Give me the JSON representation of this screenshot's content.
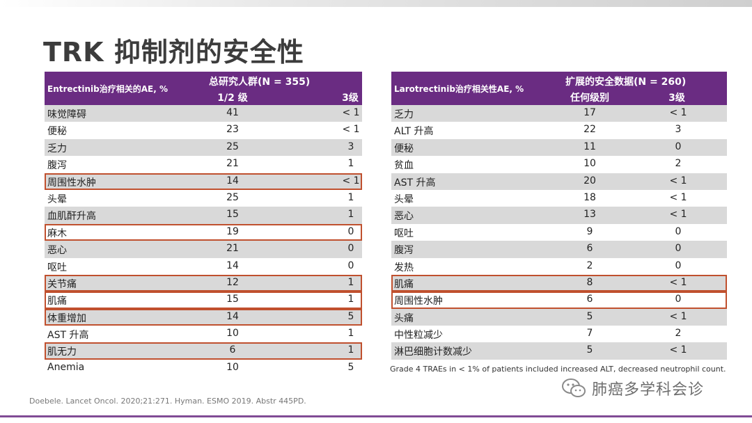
{
  "title": "TRK 抑制剂的安全性",
  "left_table": {
    "corner": "Entrectinib治疗相关的AE, %",
    "group_header": "总研究人群(N = 355)",
    "col1": "1/2 级",
    "col2": "3级",
    "rows": [
      {
        "name": "味觉障碍",
        "a": "41",
        "b": "< 1",
        "hl": false
      },
      {
        "name": "便秘",
        "a": "23",
        "b": "< 1",
        "hl": false
      },
      {
        "name": "乏力",
        "a": "25",
        "b": "3",
        "hl": false
      },
      {
        "name": "腹泻",
        "a": "21",
        "b": "1",
        "hl": false
      },
      {
        "name": "周围性水肿",
        "a": "14",
        "b": "< 1",
        "hl": true
      },
      {
        "name": "头晕",
        "a": "25",
        "b": "1",
        "hl": false
      },
      {
        "name": "血肌酐升高",
        "a": "15",
        "b": "1",
        "hl": false
      },
      {
        "name": "麻木",
        "a": "19",
        "b": "0",
        "hl": true
      },
      {
        "name": "恶心",
        "a": "21",
        "b": "0",
        "hl": false
      },
      {
        "name": "呕吐",
        "a": "14",
        "b": "0",
        "hl": false
      },
      {
        "name": "关节痛",
        "a": "12",
        "b": "1",
        "hl": true
      },
      {
        "name": "肌痛",
        "a": "15",
        "b": "1",
        "hl": true
      },
      {
        "name": "体重增加",
        "a": "14",
        "b": "5",
        "hl": true
      },
      {
        "name": "AST 升高",
        "a": "10",
        "b": "1",
        "hl": false
      },
      {
        "name": "肌无力",
        "a": "6",
        "b": "1",
        "hl": true
      },
      {
        "name": "Anemia",
        "a": "10",
        "b": "5",
        "hl": false
      }
    ]
  },
  "right_table": {
    "corner": "Larotrectinib治疗相关性AE, %",
    "group_header": "扩展的安全数据(N = 260)",
    "col1": "任何级别",
    "col2": "3级",
    "rows": [
      {
        "name": "乏力",
        "a": "17",
        "b": "< 1",
        "hl": false
      },
      {
        "name": "ALT 升高",
        "a": "22",
        "b": "3",
        "hl": false
      },
      {
        "name": "便秘",
        "a": "11",
        "b": "0",
        "hl": false
      },
      {
        "name": "贫血",
        "a": "10",
        "b": "2",
        "hl": false
      },
      {
        "name": "AST 升高",
        "a": "20",
        "b": "< 1",
        "hl": false
      },
      {
        "name": "头晕",
        "a": "18",
        "b": "< 1",
        "hl": false
      },
      {
        "name": "恶心",
        "a": "13",
        "b": "< 1",
        "hl": false
      },
      {
        "name": "呕吐",
        "a": "9",
        "b": "0",
        "hl": false
      },
      {
        "name": "腹泻",
        "a": "6",
        "b": "0",
        "hl": false
      },
      {
        "name": "发热",
        "a": "2",
        "b": "0",
        "hl": false
      },
      {
        "name": "肌痛",
        "a": "8",
        "b": "< 1",
        "hl": true
      },
      {
        "name": "周围性水肿",
        "a": "6",
        "b": "0",
        "hl": true
      },
      {
        "name": "头痛",
        "a": "5",
        "b": "< 1",
        "hl": false
      },
      {
        "name": "中性粒减少",
        "a": "7",
        "b": "2",
        "hl": false
      },
      {
        "name": "淋巴细胞计数减少",
        "a": "5",
        "b": "< 1",
        "hl": false
      }
    ]
  },
  "footnote": "Grade 4 TRAEs in < 1% of patients included increased ALT, decreased neutrophil count.",
  "reference": "Doebele. Lancet Oncol. 2020;21:271.  Hyman. ESMO 2019. Abstr 445PD.",
  "watermark": "肺癌多学科会诊",
  "colors": {
    "header": "#6a2c82",
    "stripe": "#d9d9d9",
    "highlight": "#c0502e"
  }
}
